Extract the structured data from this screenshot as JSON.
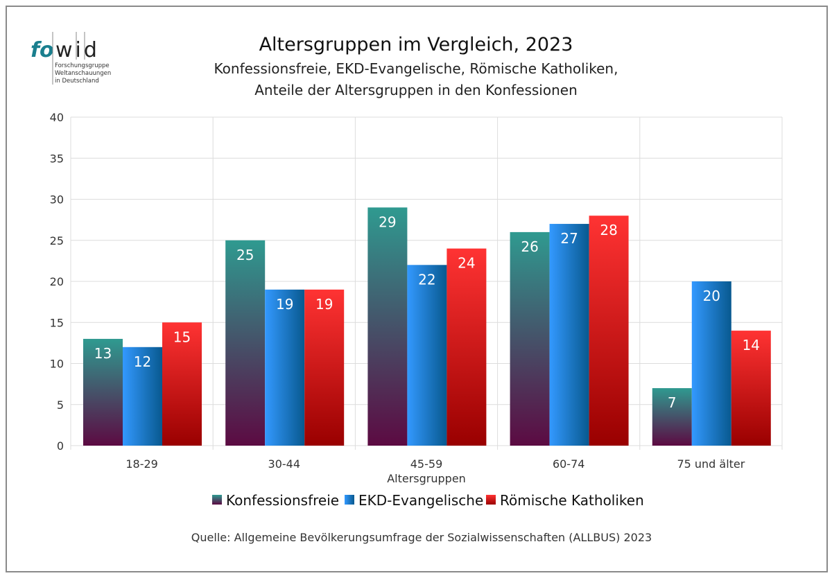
{
  "logo": {
    "text_left": "fo",
    "text_right": "wid",
    "subtitle_lines": [
      "Forschungsgruppe",
      "Weltanschauungen",
      "in Deutschland"
    ]
  },
  "chart_data": {
    "type": "bar",
    "title": "Altersgruppen im Vergleich, 2023",
    "subtitle": [
      "Konfessionsfreie, EKD-Evangelische, Römische Katholiken,",
      "Anteile der Altersgruppen in den Konfessionen"
    ],
    "xlabel": "Altersgruppen",
    "ylabel": "",
    "categories": [
      "18-29",
      "30-44",
      "45-59",
      "60-74",
      "75 und älter"
    ],
    "series": [
      {
        "name": "Konfessionsfreie",
        "values": [
          13,
          25,
          29,
          26,
          7
        ],
        "color_top": "#2f9a90",
        "color_bottom": "#5c0a42"
      },
      {
        "name": "EKD-Evangelische",
        "values": [
          12,
          19,
          22,
          27,
          20
        ],
        "color_top": "#3399ff",
        "color_bottom": "#08598f"
      },
      {
        "name": "Römische Katholiken",
        "values": [
          15,
          19,
          24,
          28,
          14
        ],
        "color_top": "#ff3333",
        "color_bottom": "#990000"
      }
    ],
    "ylim": [
      0,
      40
    ],
    "yticks": [
      0,
      5,
      10,
      15,
      20,
      25,
      30,
      35,
      40
    ],
    "grid": true,
    "legend": "bottom",
    "source": "Quelle: Allgemeine Bevölkerungsumfrage der Sozialwissenschaften (ALLBUS) 2023"
  }
}
